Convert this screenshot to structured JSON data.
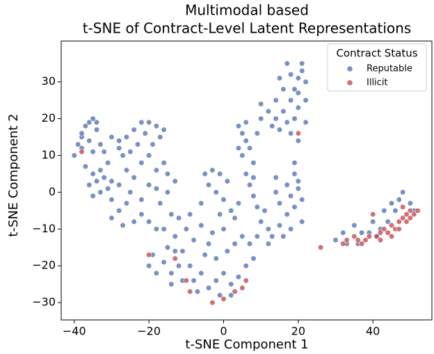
{
  "chart_data": {
    "type": "scatter",
    "title": "Multimodal based",
    "subtitle": "t-SNE of Contract-Level Latent Representations",
    "x_label": "t-SNE Component 1",
    "y_label": "t-SNE Component 2",
    "xlim": [
      -43.5,
      55.8
    ],
    "ylim": [
      -34.7,
      41.1
    ],
    "xticks": [
      {
        "value": -40,
        "label": "−40"
      },
      {
        "value": -20,
        "label": "−20"
      },
      0,
      20,
      40
    ],
    "yticks": [
      {
        "value": -30,
        "label": "−30"
      },
      {
        "value": -20,
        "label": "−20"
      },
      {
        "value": -10,
        "label": "−10"
      },
      0,
      10,
      20,
      30
    ],
    "grid": false,
    "legend_title": "Contract Status",
    "legend_loc": "upper right",
    "series": [
      {
        "name": "Reputable",
        "color": "#5875b3",
        "x": [
          -40,
          -39,
          -38,
          -37,
          -36,
          -35,
          -34,
          -36,
          -38,
          -35,
          -33,
          -37,
          -35,
          -36,
          -34,
          -33,
          -32,
          -31,
          -35,
          -33,
          -30,
          -31,
          -32,
          -38,
          -34,
          -30,
          -28,
          -26,
          -28,
          -25,
          -22,
          -20,
          -18,
          -17,
          -19,
          -21,
          -16,
          -23,
          -27,
          -24,
          -30,
          -28,
          -26,
          -25,
          -28,
          -24,
          -22,
          -20,
          -18,
          -22,
          -20,
          -18,
          -16,
          -20,
          -15,
          -17,
          -14,
          -30,
          -27,
          -24,
          -22,
          -15,
          -13,
          -18,
          -26,
          -20,
          -18,
          -16,
          -14,
          -12,
          -15,
          -13,
          -11,
          -9,
          -8,
          -6,
          -4,
          -2,
          0,
          2,
          4,
          6,
          8,
          -5,
          -2,
          1,
          3,
          -8,
          -10,
          -12,
          -6,
          -3,
          0,
          5,
          -16,
          -19,
          -7,
          -1,
          2,
          -14,
          -11,
          7,
          -4,
          -9,
          -13,
          -5,
          -3,
          -1,
          -4,
          -2,
          0,
          2,
          4,
          -6,
          -1,
          3,
          1,
          4,
          5,
          6,
          7,
          5,
          8,
          6,
          7,
          8,
          9,
          4,
          9,
          10,
          6,
          8,
          10,
          12,
          9,
          11,
          10,
          12,
          14,
          15,
          17,
          16,
          18,
          19,
          20,
          21,
          22,
          20,
          18,
          17,
          21,
          22,
          19,
          14,
          16,
          13,
          20,
          18,
          22,
          15,
          20,
          13,
          15,
          17,
          19,
          18,
          20,
          17,
          19,
          15,
          14,
          16,
          21,
          20,
          18,
          12,
          14,
          19,
          21,
          30,
          32,
          35,
          37,
          40,
          42,
          44,
          46,
          47,
          48,
          50,
          51,
          45,
          43,
          39,
          36,
          41,
          33
        ],
        "y": [
          10,
          13,
          15,
          18,
          19,
          20,
          17,
          14,
          12,
          11,
          13,
          7,
          5,
          2,
          3,
          6,
          4,
          1,
          -1,
          0,
          3,
          8,
          11,
          16,
          19,
          15,
          14,
          15,
          12,
          11,
          19,
          19,
          18,
          15,
          13,
          16,
          17,
          13,
          10,
          17,
          -2,
          -5,
          -3,
          0,
          2,
          4,
          -6,
          -8,
          -10,
          -2,
          2,
          6,
          8,
          10,
          5,
          -3,
          -6,
          -7,
          -9,
          -8,
          8,
          0,
          3,
          1,
          6,
          -20,
          -22,
          -19,
          -22,
          -20,
          -15,
          -12,
          -16,
          -20,
          -24,
          -22,
          -26,
          -24,
          -22,
          -25,
          -23,
          -20,
          -18,
          -17,
          -18,
          -16,
          -14,
          -13,
          -10,
          -7,
          -9,
          -11,
          -10,
          -12,
          -10,
          -17,
          -27,
          -28,
          -28,
          -25,
          -24,
          -14,
          -14,
          -6,
          -16,
          5,
          6,
          5,
          2,
          0,
          -2,
          -5,
          -3,
          -3,
          -6,
          -7,
          3,
          18,
          16,
          14,
          12,
          10,
          8,
          5,
          2,
          -1,
          -4,
          12,
          16,
          20,
          19,
          4,
          -8,
          -10,
          -12,
          -5,
          24,
          22,
          20,
          17,
          19,
          22,
          25,
          28,
          31,
          33,
          30,
          27,
          32,
          35,
          35,
          25,
          20,
          25,
          28,
          18,
          14,
          16,
          19,
          31,
          23,
          -12,
          -9,
          -6,
          -4,
          -1,
          1,
          2,
          5,
          -3,
          0,
          -12,
          -8,
          3,
          -10,
          -14,
          4,
          8,
          -2,
          -13,
          -11,
          -9,
          -11,
          -8,
          -10,
          -8,
          -5,
          -2,
          0,
          -3,
          -5,
          -3,
          -5,
          -11,
          -14,
          -12,
          -14
        ]
      },
      {
        "name": "Illicit",
        "color": "#c44e52",
        "x": [
          -38,
          -20,
          -13,
          -10,
          -9,
          -3,
          0,
          3,
          5,
          6,
          20,
          26,
          40,
          33,
          35,
          37,
          38,
          39,
          41,
          42,
          43,
          44,
          45,
          46,
          47,
          48,
          49,
          50,
          51,
          52,
          49,
          47,
          48,
          50,
          45,
          42,
          36,
          32
        ],
        "y": [
          11,
          -17,
          -18,
          -24,
          -27,
          -30,
          -29,
          -27,
          -26,
          -24,
          16,
          -15,
          -6,
          -13,
          -12,
          -14,
          -13,
          -12,
          -12,
          -11,
          -10,
          -11,
          -9,
          -10,
          -8,
          -7,
          -6,
          -5,
          -6,
          -5,
          -8,
          -10,
          -4,
          -7,
          -12,
          -13,
          -13,
          -14
        ]
      }
    ]
  }
}
